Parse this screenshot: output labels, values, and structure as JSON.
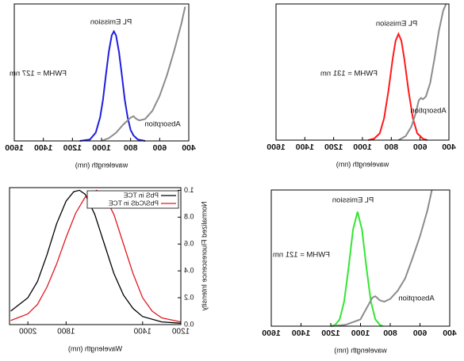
{
  "chart_data": [
    {
      "type": "line",
      "xlabel": "wavelength (nm)",
      "xlim": [
        400,
        1600
      ],
      "ylim": [
        0,
        1
      ],
      "xticks": [
        400,
        600,
        800,
        1000,
        1200,
        1400,
        1600
      ],
      "annotations": [
        "PL Emission",
        "FWHM = 127 nm",
        "Absorption"
      ],
      "series": [
        {
          "color": "#1f1fe0",
          "x": [
            700,
            750,
            780,
            800,
            820,
            840,
            860,
            880,
            900,
            915,
            930,
            950,
            970,
            990,
            1010,
            1040,
            1080,
            1150
          ],
          "values": [
            0,
            0.01,
            0.04,
            0.08,
            0.17,
            0.3,
            0.48,
            0.65,
            0.77,
            0.8,
            0.77,
            0.65,
            0.48,
            0.3,
            0.17,
            0.06,
            0.01,
            0
          ]
        },
        {
          "color": "#8c8c8c",
          "x": [
            1000,
            950,
            900,
            850,
            800,
            780,
            760,
            740,
            700,
            650,
            600,
            550,
            500,
            450,
            425
          ],
          "values": [
            0,
            0.02,
            0.06,
            0.12,
            0.17,
            0.18,
            0.16,
            0.15,
            0.16,
            0.22,
            0.33,
            0.48,
            0.66,
            0.86,
            0.98
          ]
        }
      ]
    },
    {
      "type": "line",
      "xlabel": "wavelength (nm)",
      "xlim": [
        400,
        1600
      ],
      "ylim": [
        0,
        1
      ],
      "xticks": [
        400,
        600,
        800,
        1000,
        1200,
        1400,
        1600
      ],
      "annotations": [
        "PL Emission",
        "FWHM = 131 nm",
        "Absorption"
      ],
      "series": [
        {
          "color": "#ff1a1a",
          "x": [
            550,
            580,
            620,
            650,
            680,
            710,
            730,
            750,
            770,
            790,
            820,
            850,
            880,
            920,
            960
          ],
          "values": [
            0,
            0.01,
            0.05,
            0.16,
            0.36,
            0.6,
            0.73,
            0.78,
            0.73,
            0.6,
            0.36,
            0.16,
            0.05,
            0.01,
            0
          ]
        },
        {
          "color": "#8c8c8c",
          "x": [
            750,
            700,
            660,
            630,
            610,
            595,
            580,
            560,
            530,
            500,
            470,
            440,
            420
          ],
          "values": [
            0,
            0.03,
            0.1,
            0.2,
            0.29,
            0.31,
            0.3,
            0.32,
            0.42,
            0.6,
            0.8,
            0.95,
            1.0
          ]
        }
      ]
    },
    {
      "type": "line",
      "xlabel": "Wavelength (nm)",
      "ylabel": "Normalized Fluorescence Intensity",
      "xlim": [
        1200,
        2096
      ],
      "ylim": [
        0,
        1.02
      ],
      "xticks": [
        1200,
        1400,
        1800,
        2000
      ],
      "yticks": [
        {
          "value": 0,
          "label": "0.0"
        },
        0.2,
        0.4,
        0.6,
        0.8,
        {
          "value": 1,
          "label": "1.0"
        }
      ],
      "legend": "upper-left",
      "series": [
        {
          "name": "PbS in TCE",
          "color": "#000000",
          "x": [
            2090,
            2000,
            1950,
            1900,
            1850,
            1800,
            1760,
            1730,
            1700,
            1650,
            1600,
            1550,
            1500,
            1450,
            1400,
            1300,
            1200
          ],
          "values": [
            0.1,
            0.2,
            0.32,
            0.52,
            0.75,
            0.92,
            0.99,
            1.0,
            0.97,
            0.82,
            0.6,
            0.38,
            0.22,
            0.12,
            0.06,
            0.02,
            0.01
          ]
        },
        {
          "name": "PbS/CdS in TCE",
          "color": "#e0191f",
          "x": [
            2090,
            2000,
            1950,
            1900,
            1850,
            1800,
            1750,
            1700,
            1640,
            1600,
            1550,
            1500,
            1450,
            1400,
            1350,
            1300,
            1200
          ],
          "values": [
            0.03,
            0.08,
            0.15,
            0.28,
            0.45,
            0.65,
            0.83,
            0.95,
            1.0,
            0.96,
            0.82,
            0.6,
            0.38,
            0.2,
            0.1,
            0.05,
            0.02
          ]
        }
      ]
    },
    {
      "type": "line",
      "xlabel": "wavelength (nm)",
      "xlim": [
        400,
        1600
      ],
      "ylim": [
        0,
        1
      ],
      "xticks": [
        400,
        600,
        800,
        1000,
        1200,
        1400,
        1600
      ],
      "annotations": [
        "PL Emission",
        "FWHM = 121 nm",
        "Absorption"
      ],
      "series": [
        {
          "color": "#33e633",
          "x": [
            850,
            870,
            900,
            930,
            960,
            990,
            1020,
            1050,
            1080,
            1110,
            1140,
            1170,
            1200
          ],
          "values": [
            0,
            0.01,
            0.05,
            0.18,
            0.43,
            0.71,
            0.84,
            0.71,
            0.43,
            0.18,
            0.05,
            0.01,
            0
          ]
        },
        {
          "color": "#8c8c8c",
          "x": [
            1200,
            1100,
            1000,
            950,
            920,
            900,
            870,
            840,
            800,
            750,
            700,
            650,
            600,
            550,
            520
          ],
          "values": [
            0,
            0.01,
            0.05,
            0.15,
            0.21,
            0.22,
            0.19,
            0.18,
            0.2,
            0.26,
            0.35,
            0.5,
            0.66,
            0.85,
            1.0
          ]
        }
      ]
    }
  ]
}
